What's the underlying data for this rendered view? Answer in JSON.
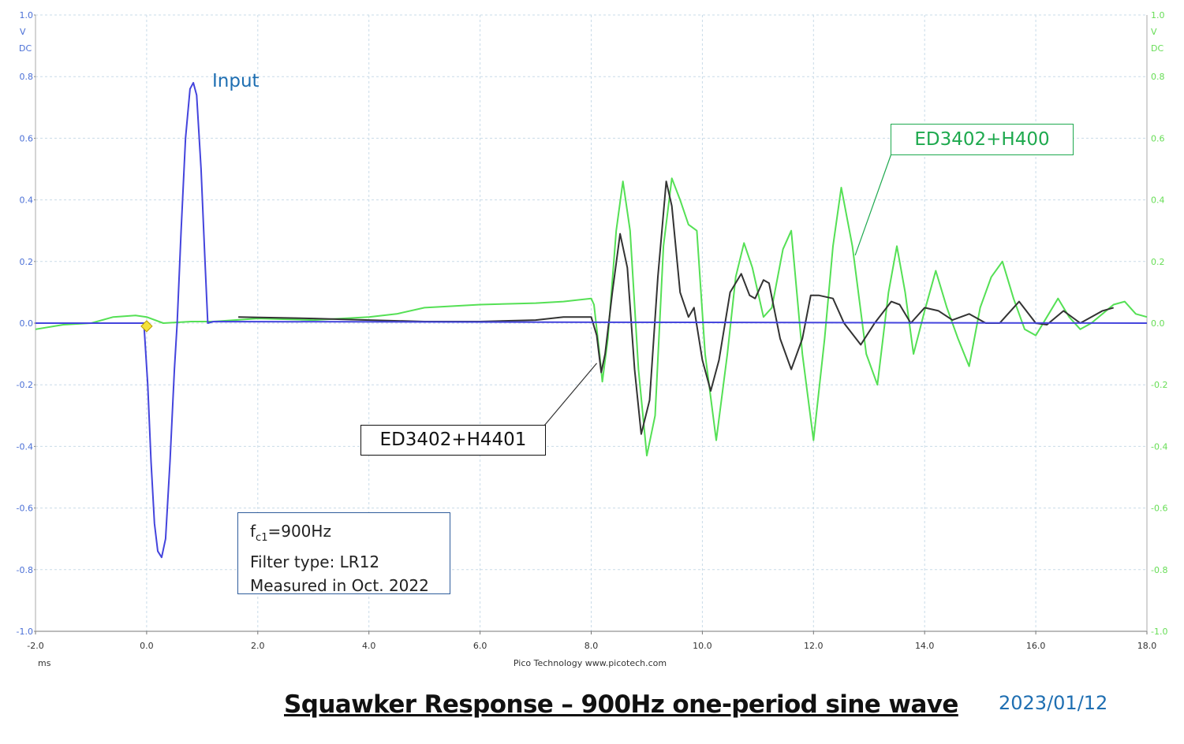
{
  "chart_data": {
    "type": "line",
    "title": "Squawker Response – 900Hz one-period sine wave",
    "date": "2023/01/12",
    "xlabel": "ms",
    "footer": "Pico Technology   www.picotech.com",
    "xlim": [
      -2.0,
      18.0
    ],
    "ylim": [
      -1.0,
      1.0
    ],
    "x_ticks": [
      "-2.0",
      "0.0",
      "2.0",
      "4.0",
      "6.0",
      "8.0",
      "10.0",
      "12.0",
      "14.0",
      "16.0",
      "18.0"
    ],
    "y_ticks": [
      "1.0",
      "0.8",
      "0.6",
      "0.4",
      "0.2",
      "0.0",
      "-0.2",
      "-0.4",
      "-0.6",
      "-0.8",
      "-1.0"
    ],
    "left_axis": {
      "unit": "V",
      "coupling": "DC",
      "color": "#4a6fd6"
    },
    "right_axis": {
      "unit": "V",
      "coupling": "DC",
      "color": "#66dd55"
    },
    "trigger_marker": {
      "x": 0.0,
      "y": -0.01
    },
    "grid": true,
    "series": [
      {
        "name": "Input",
        "color": "#4444dd",
        "points": [
          [
            -2.0,
            0.0
          ],
          [
            -0.05,
            0.0
          ],
          [
            0.02,
            -0.2
          ],
          [
            0.08,
            -0.45
          ],
          [
            0.14,
            -0.65
          ],
          [
            0.2,
            -0.74
          ],
          [
            0.27,
            -0.76
          ],
          [
            0.34,
            -0.7
          ],
          [
            0.42,
            -0.45
          ],
          [
            0.5,
            -0.15
          ],
          [
            0.55,
            0.0
          ],
          [
            0.62,
            0.3
          ],
          [
            0.7,
            0.6
          ],
          [
            0.78,
            0.76
          ],
          [
            0.84,
            0.78
          ],
          [
            0.9,
            0.74
          ],
          [
            0.98,
            0.5
          ],
          [
            1.05,
            0.2
          ],
          [
            1.1,
            0.0
          ],
          [
            1.2,
            0.005
          ],
          [
            18.0,
            0.0
          ]
        ]
      },
      {
        "name": "ED3402+H4401",
        "color": "#333333",
        "points": [
          [
            1.65,
            0.02
          ],
          [
            3.0,
            0.015
          ],
          [
            4.0,
            0.01
          ],
          [
            5.0,
            0.005
          ],
          [
            6.0,
            0.005
          ],
          [
            7.0,
            0.01
          ],
          [
            7.5,
            0.02
          ],
          [
            8.0,
            0.02
          ],
          [
            8.1,
            -0.04
          ],
          [
            8.18,
            -0.16
          ],
          [
            8.25,
            -0.1
          ],
          [
            8.38,
            0.1
          ],
          [
            8.52,
            0.29
          ],
          [
            8.65,
            0.18
          ],
          [
            8.78,
            -0.15
          ],
          [
            8.9,
            -0.36
          ],
          [
            9.05,
            -0.25
          ],
          [
            9.2,
            0.15
          ],
          [
            9.35,
            0.46
          ],
          [
            9.45,
            0.38
          ],
          [
            9.6,
            0.1
          ],
          [
            9.75,
            0.02
          ],
          [
            9.85,
            0.05
          ],
          [
            10.0,
            -0.12
          ],
          [
            10.15,
            -0.22
          ],
          [
            10.3,
            -0.12
          ],
          [
            10.5,
            0.1
          ],
          [
            10.7,
            0.16
          ],
          [
            10.85,
            0.09
          ],
          [
            10.95,
            0.08
          ],
          [
            11.1,
            0.14
          ],
          [
            11.2,
            0.13
          ],
          [
            11.4,
            -0.05
          ],
          [
            11.6,
            -0.15
          ],
          [
            11.8,
            -0.05
          ],
          [
            11.95,
            0.09
          ],
          [
            12.1,
            0.09
          ],
          [
            12.35,
            0.08
          ],
          [
            12.55,
            0.0
          ],
          [
            12.85,
            -0.07
          ],
          [
            13.1,
            0.0
          ],
          [
            13.4,
            0.07
          ],
          [
            13.55,
            0.06
          ],
          [
            13.75,
            0.0
          ],
          [
            14.0,
            0.05
          ],
          [
            14.25,
            0.04
          ],
          [
            14.5,
            0.01
          ],
          [
            14.8,
            0.03
          ],
          [
            15.1,
            0.0
          ],
          [
            15.35,
            0.0
          ],
          [
            15.7,
            0.07
          ],
          [
            16.0,
            0.0
          ],
          [
            16.2,
            -0.005
          ],
          [
            16.5,
            0.04
          ],
          [
            16.8,
            0.0
          ],
          [
            17.0,
            0.02
          ],
          [
            17.2,
            0.04
          ],
          [
            17.4,
            0.05
          ]
        ]
      },
      {
        "name": "ED3402+H400",
        "color": "#55e055",
        "points": [
          [
            -2.0,
            -0.02
          ],
          [
            -1.5,
            -0.005
          ],
          [
            -1.0,
            0.0
          ],
          [
            -0.6,
            0.02
          ],
          [
            -0.2,
            0.025
          ],
          [
            0.0,
            0.02
          ],
          [
            0.3,
            0.0
          ],
          [
            0.8,
            0.005
          ],
          [
            1.2,
            0.005
          ],
          [
            2.0,
            0.015
          ],
          [
            3.0,
            0.01
          ],
          [
            4.0,
            0.02
          ],
          [
            4.5,
            0.03
          ],
          [
            5.0,
            0.05
          ],
          [
            6.0,
            0.06
          ],
          [
            7.0,
            0.065
          ],
          [
            7.5,
            0.07
          ],
          [
            8.0,
            0.08
          ],
          [
            8.05,
            0.06
          ],
          [
            8.15,
            -0.1
          ],
          [
            8.2,
            -0.19
          ],
          [
            8.3,
            -0.05
          ],
          [
            8.45,
            0.3
          ],
          [
            8.57,
            0.46
          ],
          [
            8.7,
            0.3
          ],
          [
            8.85,
            -0.15
          ],
          [
            9.0,
            -0.43
          ],
          [
            9.15,
            -0.3
          ],
          [
            9.3,
            0.25
          ],
          [
            9.45,
            0.47
          ],
          [
            9.6,
            0.4
          ],
          [
            9.75,
            0.32
          ],
          [
            9.9,
            0.3
          ],
          [
            10.05,
            -0.1
          ],
          [
            10.25,
            -0.38
          ],
          [
            10.45,
            -0.1
          ],
          [
            10.6,
            0.15
          ],
          [
            10.75,
            0.26
          ],
          [
            10.9,
            0.18
          ],
          [
            11.1,
            0.02
          ],
          [
            11.25,
            0.05
          ],
          [
            11.45,
            0.24
          ],
          [
            11.6,
            0.3
          ],
          [
            11.8,
            -0.1
          ],
          [
            12.0,
            -0.38
          ],
          [
            12.2,
            -0.05
          ],
          [
            12.35,
            0.25
          ],
          [
            12.5,
            0.44
          ],
          [
            12.7,
            0.25
          ],
          [
            12.95,
            -0.1
          ],
          [
            13.15,
            -0.2
          ],
          [
            13.35,
            0.1
          ],
          [
            13.5,
            0.25
          ],
          [
            13.65,
            0.1
          ],
          [
            13.8,
            -0.1
          ],
          [
            14.0,
            0.04
          ],
          [
            14.2,
            0.17
          ],
          [
            14.4,
            0.05
          ],
          [
            14.6,
            -0.05
          ],
          [
            14.8,
            -0.14
          ],
          [
            15.0,
            0.05
          ],
          [
            15.2,
            0.15
          ],
          [
            15.4,
            0.2
          ],
          [
            15.6,
            0.08
          ],
          [
            15.8,
            -0.02
          ],
          [
            16.0,
            -0.04
          ],
          [
            16.2,
            0.02
          ],
          [
            16.4,
            0.08
          ],
          [
            16.6,
            0.02
          ],
          [
            16.8,
            -0.02
          ],
          [
            17.0,
            0.0
          ],
          [
            17.2,
            0.03
          ],
          [
            17.4,
            0.06
          ],
          [
            17.6,
            0.07
          ],
          [
            17.8,
            0.03
          ],
          [
            18.0,
            0.02
          ]
        ]
      }
    ]
  },
  "labels": {
    "input": "Input",
    "green_series": "ED3402+H400",
    "black_series": "ED3402+H4401"
  },
  "note": {
    "line1_main": "f",
    "line1_sub": "c1",
    "line1_rest": "=900Hz",
    "line2": "Filter type: LR12",
    "line3": "Measured in Oct. 2022"
  }
}
